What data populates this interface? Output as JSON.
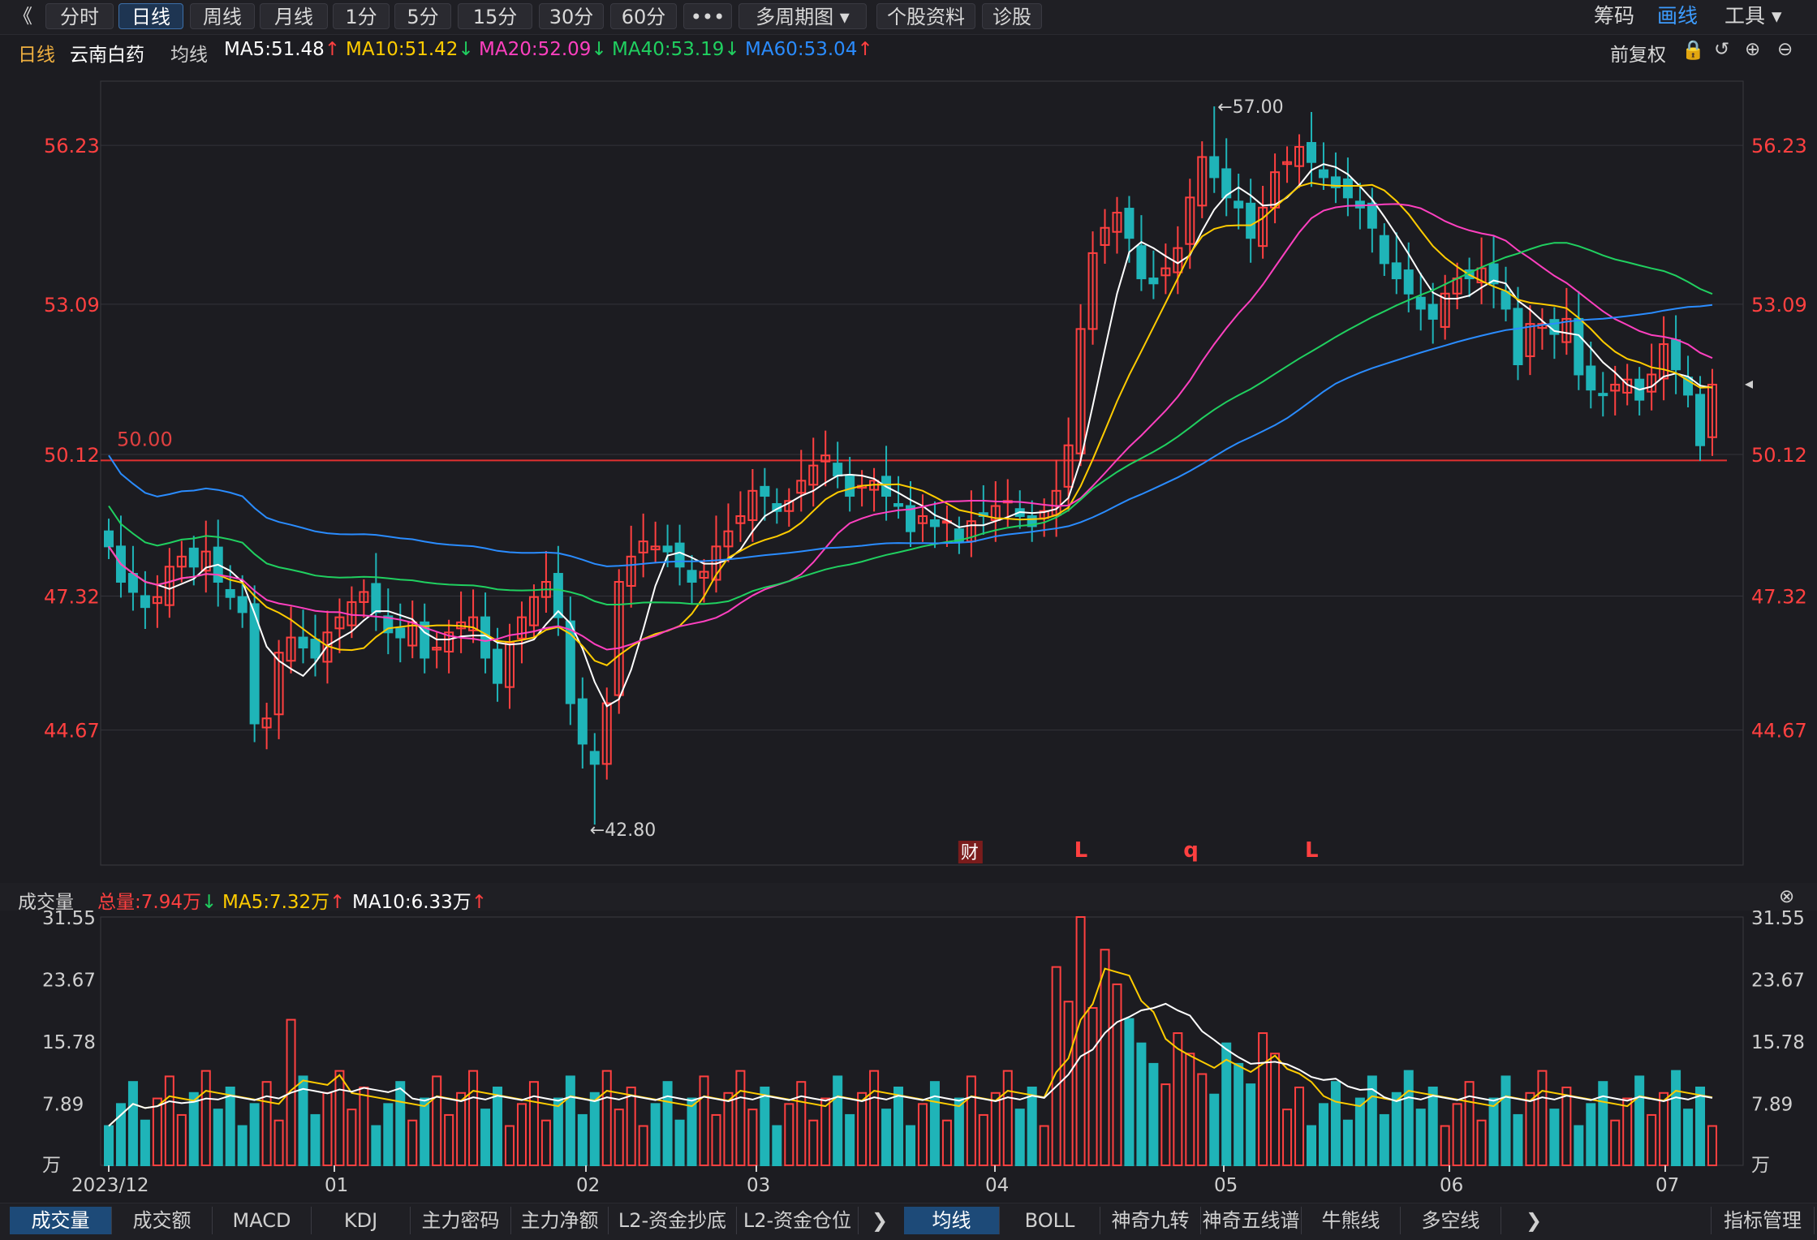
{
  "toolbar": {
    "back": "《",
    "tabs": [
      "分时",
      "日线",
      "周线",
      "月线",
      "1分",
      "5分",
      "15分",
      "30分",
      "60分",
      "•••",
      "多周期图 ▾",
      "个股资料",
      "诊股"
    ],
    "right": [
      "筹码",
      "画线",
      "工具 ▾"
    ]
  },
  "ma": {
    "period": "日线",
    "name": "云南白药",
    "label": "均线",
    "ma5": "MA5:51.48",
    "ma10": "MA10:51.42",
    "ma20": "MA20:52.09",
    "ma40": "MA40:53.19",
    "ma60": "MA60:53.04",
    "fq": "前复权"
  },
  "price_axis": [
    "56.23",
    "53.09",
    "50.12",
    "47.32",
    "44.67"
  ],
  "markers": {
    "high": "←57.00",
    "low": "←42.80",
    "line": "50.00",
    "cai": "财",
    "L1": "L",
    "q": "q",
    "L2": "L"
  },
  "volume": {
    "title": "成交量",
    "total": "总量:7.94万",
    "ma5": "MA5:7.32万",
    "ma10": "MA10:6.33万",
    "axis": [
      "31.55",
      "23.67",
      "15.78",
      "7.89",
      "万"
    ]
  },
  "dates": [
    "2023/12",
    "01",
    "02",
    "03",
    "04",
    "05",
    "06",
    "07"
  ],
  "bottom_tabs_left": [
    "成交量",
    "成交额",
    "MACD",
    "KDJ",
    "主力密码",
    "主力净额",
    "L2-资金抄底",
    "L2-资金仓位"
  ],
  "bottom_tabs_right": [
    "均线",
    "BOLL",
    "神奇九转",
    "神奇五线谱",
    "牛熊线",
    "多空线"
  ],
  "bottom_manage": "指标管理",
  "colors": {
    "up": "#ff4040",
    "down": "#1fb4b8",
    "ma5": "#ffffff",
    "ma10": "#ffcc00",
    "ma20": "#ff40c0",
    "ma40": "#20d060",
    "ma60": "#2a8cff"
  },
  "chart_data": {
    "type": "candlestick",
    "ylim": [
      42.0,
      57.5
    ],
    "closes": [
      48.3,
      47.6,
      47.4,
      47.1,
      47.3,
      47.9,
      48.1,
      47.9,
      48.2,
      47.6,
      47.3,
      47.0,
      44.8,
      44.9,
      46.2,
      46.5,
      46.3,
      46.1,
      46.6,
      46.9,
      47.2,
      47.4,
      47.0,
      46.6,
      46.5,
      46.8,
      46.1,
      46.3,
      46.6,
      46.8,
      46.9,
      46.1,
      45.6,
      46.4,
      46.9,
      47.3,
      47.6,
      46.9,
      45.2,
      44.4,
      44.0,
      45.2,
      47.6,
      48.1,
      48.4,
      48.3,
      48.2,
      47.9,
      47.6,
      47.8,
      48.3,
      48.6,
      48.9,
      49.4,
      49.3,
      49.0,
      49.2,
      49.6,
      49.9,
      50.1,
      49.7,
      49.3,
      49.5,
      49.6,
      49.3,
      49.1,
      48.6,
      48.9,
      48.7,
      48.8,
      48.4,
      48.8,
      48.9,
      49.1,
      49.2,
      48.9,
      48.7,
      49.0,
      49.4,
      50.3,
      52.6,
      54.1,
      54.6,
      54.9,
      54.4,
      53.6,
      53.5,
      53.8,
      54.2,
      55.2,
      56.0,
      55.6,
      55.2,
      55.0,
      54.4,
      55.0,
      55.7,
      55.9,
      56.2,
      55.9,
      55.6,
      55.4,
      55.2,
      55.0,
      54.6,
      53.9,
      53.6,
      53.3,
      53.0,
      52.8,
      53.3,
      53.6,
      53.6,
      53.8,
      53.5,
      53.0,
      51.9,
      52.7,
      52.7,
      52.5,
      52.8,
      51.7,
      51.4,
      51.3,
      51.5,
      51.6,
      51.2,
      51.7,
      52.3,
      51.8,
      51.3,
      50.3,
      51.5
    ],
    "volume_ylim": [
      0,
      31.55
    ],
    "volume_unit": "万"
  }
}
